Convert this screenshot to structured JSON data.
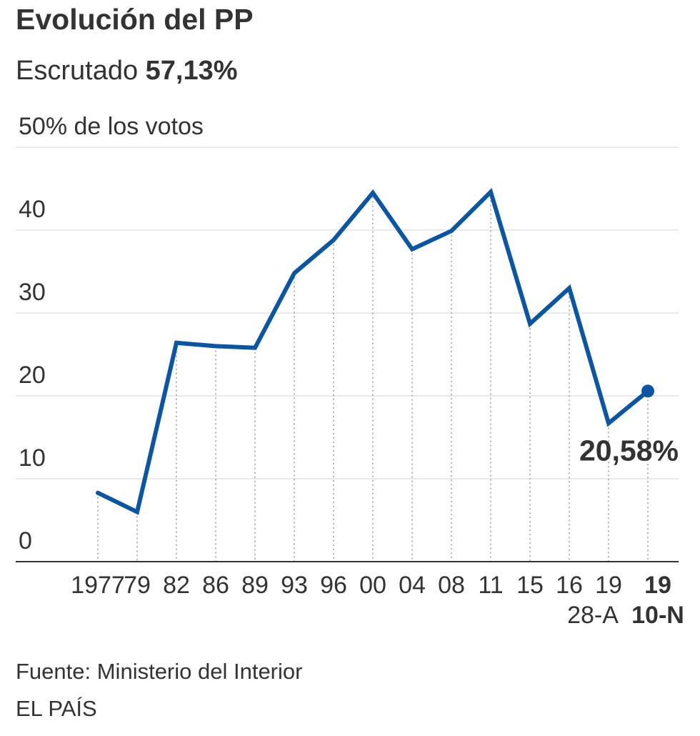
{
  "header": {
    "title": "Evolución del PP",
    "subtitle_prefix": "Escrutado",
    "subtitle_value": "57,13%"
  },
  "footer": {
    "source": "Fuente: Ministerio del Interior",
    "brand": "EL PAÍS"
  },
  "chart_data": {
    "type": "line",
    "title": "Evolución del PP",
    "ylabel": "50% de los votos",
    "ylim": [
      0,
      50
    ],
    "yticks": [
      0,
      10,
      20,
      30,
      40
    ],
    "ytick_labels": [
      "0",
      "10",
      "20",
      "30",
      "40"
    ],
    "top_label": "50% de los votos",
    "x_labels": [
      "1977",
      "79",
      "82",
      "86",
      "89",
      "93",
      "96",
      "00",
      "04",
      "08",
      "11",
      "15",
      "16",
      "19",
      "19"
    ],
    "x_sublabels": [
      "",
      "",
      "",
      "",
      "",
      "",
      "",
      "",
      "",
      "",
      "",
      "",
      "",
      "28-A",
      "10-N"
    ],
    "highlight_index": 14,
    "series": [
      {
        "name": "PP",
        "color": "#0b56a4",
        "values": [
          8.3,
          6.0,
          26.4,
          26.0,
          25.8,
          34.8,
          38.8,
          44.5,
          37.7,
          39.9,
          44.6,
          28.7,
          33.0,
          16.7,
          20.58
        ]
      }
    ],
    "annotation": "20,58%",
    "grid": true
  }
}
